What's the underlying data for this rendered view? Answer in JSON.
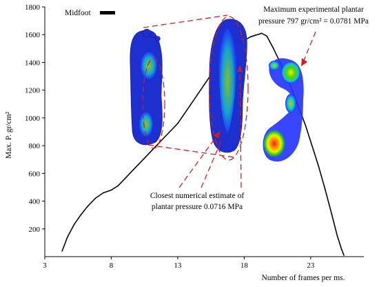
{
  "chart_data": {
    "type": "line",
    "title": "",
    "xlabel": "Number of frames per ms.",
    "ylabel": "Max. P. gr/cm²",
    "xlim": [
      3,
      27
    ],
    "ylim": [
      0,
      1800
    ],
    "x_ticks": [
      3,
      8,
      13,
      18,
      23
    ],
    "y_ticks": [
      200,
      400,
      600,
      800,
      1000,
      1200,
      1400,
      1600,
      1800
    ],
    "grid": false,
    "legend": {
      "position": "top-left",
      "entries": [
        {
          "label": "Midfoot",
          "color": "#000000"
        }
      ]
    },
    "series": [
      {
        "name": "Midfoot",
        "color": "#000000",
        "points": [
          [
            4.3,
            40
          ],
          [
            4.7,
            140
          ],
          [
            5.2,
            230
          ],
          [
            5.7,
            300
          ],
          [
            6.2,
            360
          ],
          [
            6.8,
            420
          ],
          [
            7.4,
            460
          ],
          [
            8.0,
            480
          ],
          [
            8.5,
            510
          ],
          [
            9.0,
            560
          ],
          [
            9.5,
            610
          ],
          [
            10.0,
            660
          ],
          [
            10.5,
            710
          ],
          [
            11.0,
            760
          ],
          [
            11.5,
            810
          ],
          [
            12.0,
            860
          ],
          [
            12.5,
            910
          ],
          [
            13.0,
            960
          ],
          [
            13.5,
            1030
          ],
          [
            14.0,
            1100
          ],
          [
            14.5,
            1170
          ],
          [
            15.0,
            1240
          ],
          [
            15.5,
            1310
          ],
          [
            16.0,
            1380
          ],
          [
            16.5,
            1440
          ],
          [
            17.0,
            1490
          ],
          [
            17.5,
            1530
          ],
          [
            18.0,
            1560
          ],
          [
            18.5,
            1585
          ],
          [
            19.0,
            1600
          ],
          [
            19.3,
            1610
          ],
          [
            19.7,
            1590
          ],
          [
            20.2,
            1500
          ],
          [
            20.8,
            1380
          ],
          [
            21.4,
            1250
          ],
          [
            22.0,
            1100
          ],
          [
            22.6,
            950
          ],
          [
            23.1,
            800
          ],
          [
            23.6,
            650
          ],
          [
            24.1,
            480
          ],
          [
            24.6,
            300
          ],
          [
            25.0,
            150
          ],
          [
            25.3,
            60
          ],
          [
            25.5,
            10
          ]
        ]
      }
    ],
    "annotations": [
      {
        "id": "max_exp",
        "lines": [
          "Maximum experimental plantar",
          "pressure 797 gr/cm² = 0.0781 MPa"
        ]
      },
      {
        "id": "closest_num",
        "lines": [
          "Closest numerical estimate of",
          "plantar pressure 0.0716 MPa"
        ]
      }
    ],
    "colors": {
      "line": "#000000",
      "dashed_callout": "#cc1f1f",
      "foot_mesh": "#1c2fcf"
    }
  }
}
